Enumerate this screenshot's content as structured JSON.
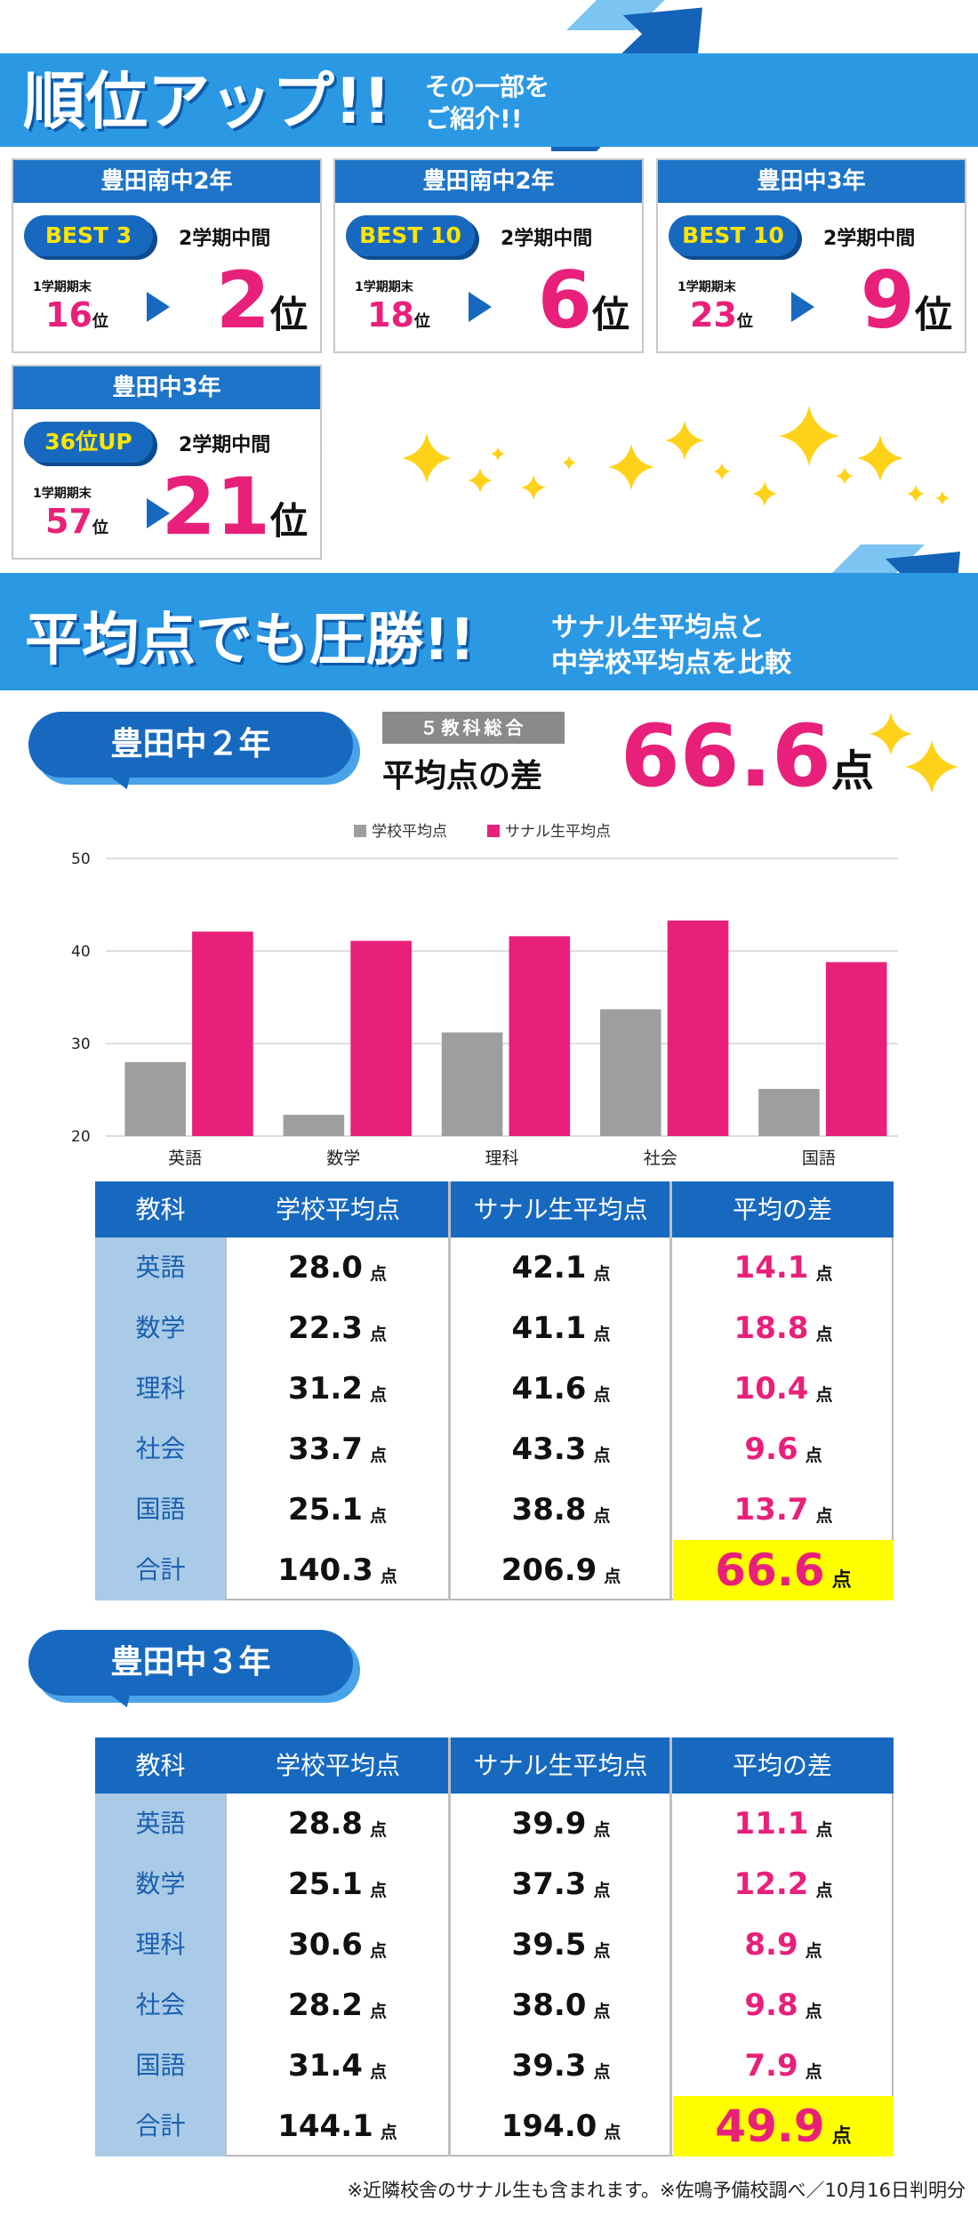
{
  "banner1": {
    "title": "順位アップ!!",
    "subtitle": [
      "その一部を",
      "ご紹介!!"
    ]
  },
  "rank_unit": "位",
  "rank_cards": [
    {
      "school": "豊田南中2年",
      "badge": "BEST 3",
      "after_term": "2学期中間",
      "before_term": "1学期期末",
      "before": "16",
      "after": "2"
    },
    {
      "school": "豊田南中2年",
      "badge": "BEST 10",
      "after_term": "2学期中間",
      "before_term": "1学期期末",
      "before": "18",
      "after": "6"
    },
    {
      "school": "豊田中3年",
      "badge": "BEST 10",
      "after_term": "2学期中間",
      "before_term": "1学期期末",
      "before": "23",
      "after": "9"
    },
    {
      "school": "豊田中3年",
      "badge": "36位UP",
      "after_term": "2学期中間",
      "before_term": "1学期期末",
      "before": "57",
      "after": "21"
    }
  ],
  "banner2": {
    "title": "平均点でも圧勝!!",
    "subtitle": [
      "サナル生平均点と",
      "中学校平均点を比較"
    ]
  },
  "grade2": {
    "label": "豊田中２年",
    "tag": "５教科総合",
    "caption": "平均点の差",
    "total_diff": "66.6",
    "unit": "点"
  },
  "chart_data": {
    "type": "bar",
    "categories": [
      "英語",
      "数学",
      "理科",
      "社会",
      "国語"
    ],
    "series": [
      {
        "name": "学校平均点",
        "color": "#9e9e9e",
        "values": [
          28.0,
          22.3,
          31.2,
          33.7,
          25.1
        ]
      },
      {
        "name": "サナル生平均点",
        "color": "#e8207a",
        "values": [
          42.1,
          41.1,
          41.6,
          43.3,
          38.8
        ]
      }
    ],
    "ylim": [
      20,
      50
    ],
    "yticks": [
      20,
      30,
      40,
      50
    ],
    "grid": true,
    "legend": "top"
  },
  "tables": [
    {
      "header": [
        "教科",
        "学校平均点",
        "サナル生平均点",
        "平均の差"
      ],
      "unit": "点",
      "rows": [
        [
          "英語",
          "28.0",
          "42.1",
          "14.1"
        ],
        [
          "数学",
          "22.3",
          "41.1",
          "18.8"
        ],
        [
          "理科",
          "31.2",
          "41.6",
          "10.4"
        ],
        [
          "社会",
          "33.7",
          "43.3",
          "9.6"
        ],
        [
          "国語",
          "25.1",
          "38.8",
          "13.7"
        ],
        [
          "合計",
          "140.3",
          "206.9",
          "66.6"
        ]
      ]
    },
    {
      "label": "豊田中３年",
      "header": [
        "教科",
        "学校平均点",
        "サナル生平均点",
        "平均の差"
      ],
      "unit": "点",
      "rows": [
        [
          "英語",
          "28.8",
          "39.9",
          "11.1"
        ],
        [
          "数学",
          "25.1",
          "37.3",
          "12.2"
        ],
        [
          "理科",
          "30.6",
          "39.5",
          "8.9"
        ],
        [
          "社会",
          "28.2",
          "38.0",
          "9.8"
        ],
        [
          "国語",
          "31.4",
          "39.3",
          "7.9"
        ],
        [
          "合計",
          "144.1",
          "194.0",
          "49.9"
        ]
      ]
    }
  ],
  "footnote": "※近隣校舎のサナル生も含まれます。※佐鳴予備校調べ／10月16日判明分"
}
